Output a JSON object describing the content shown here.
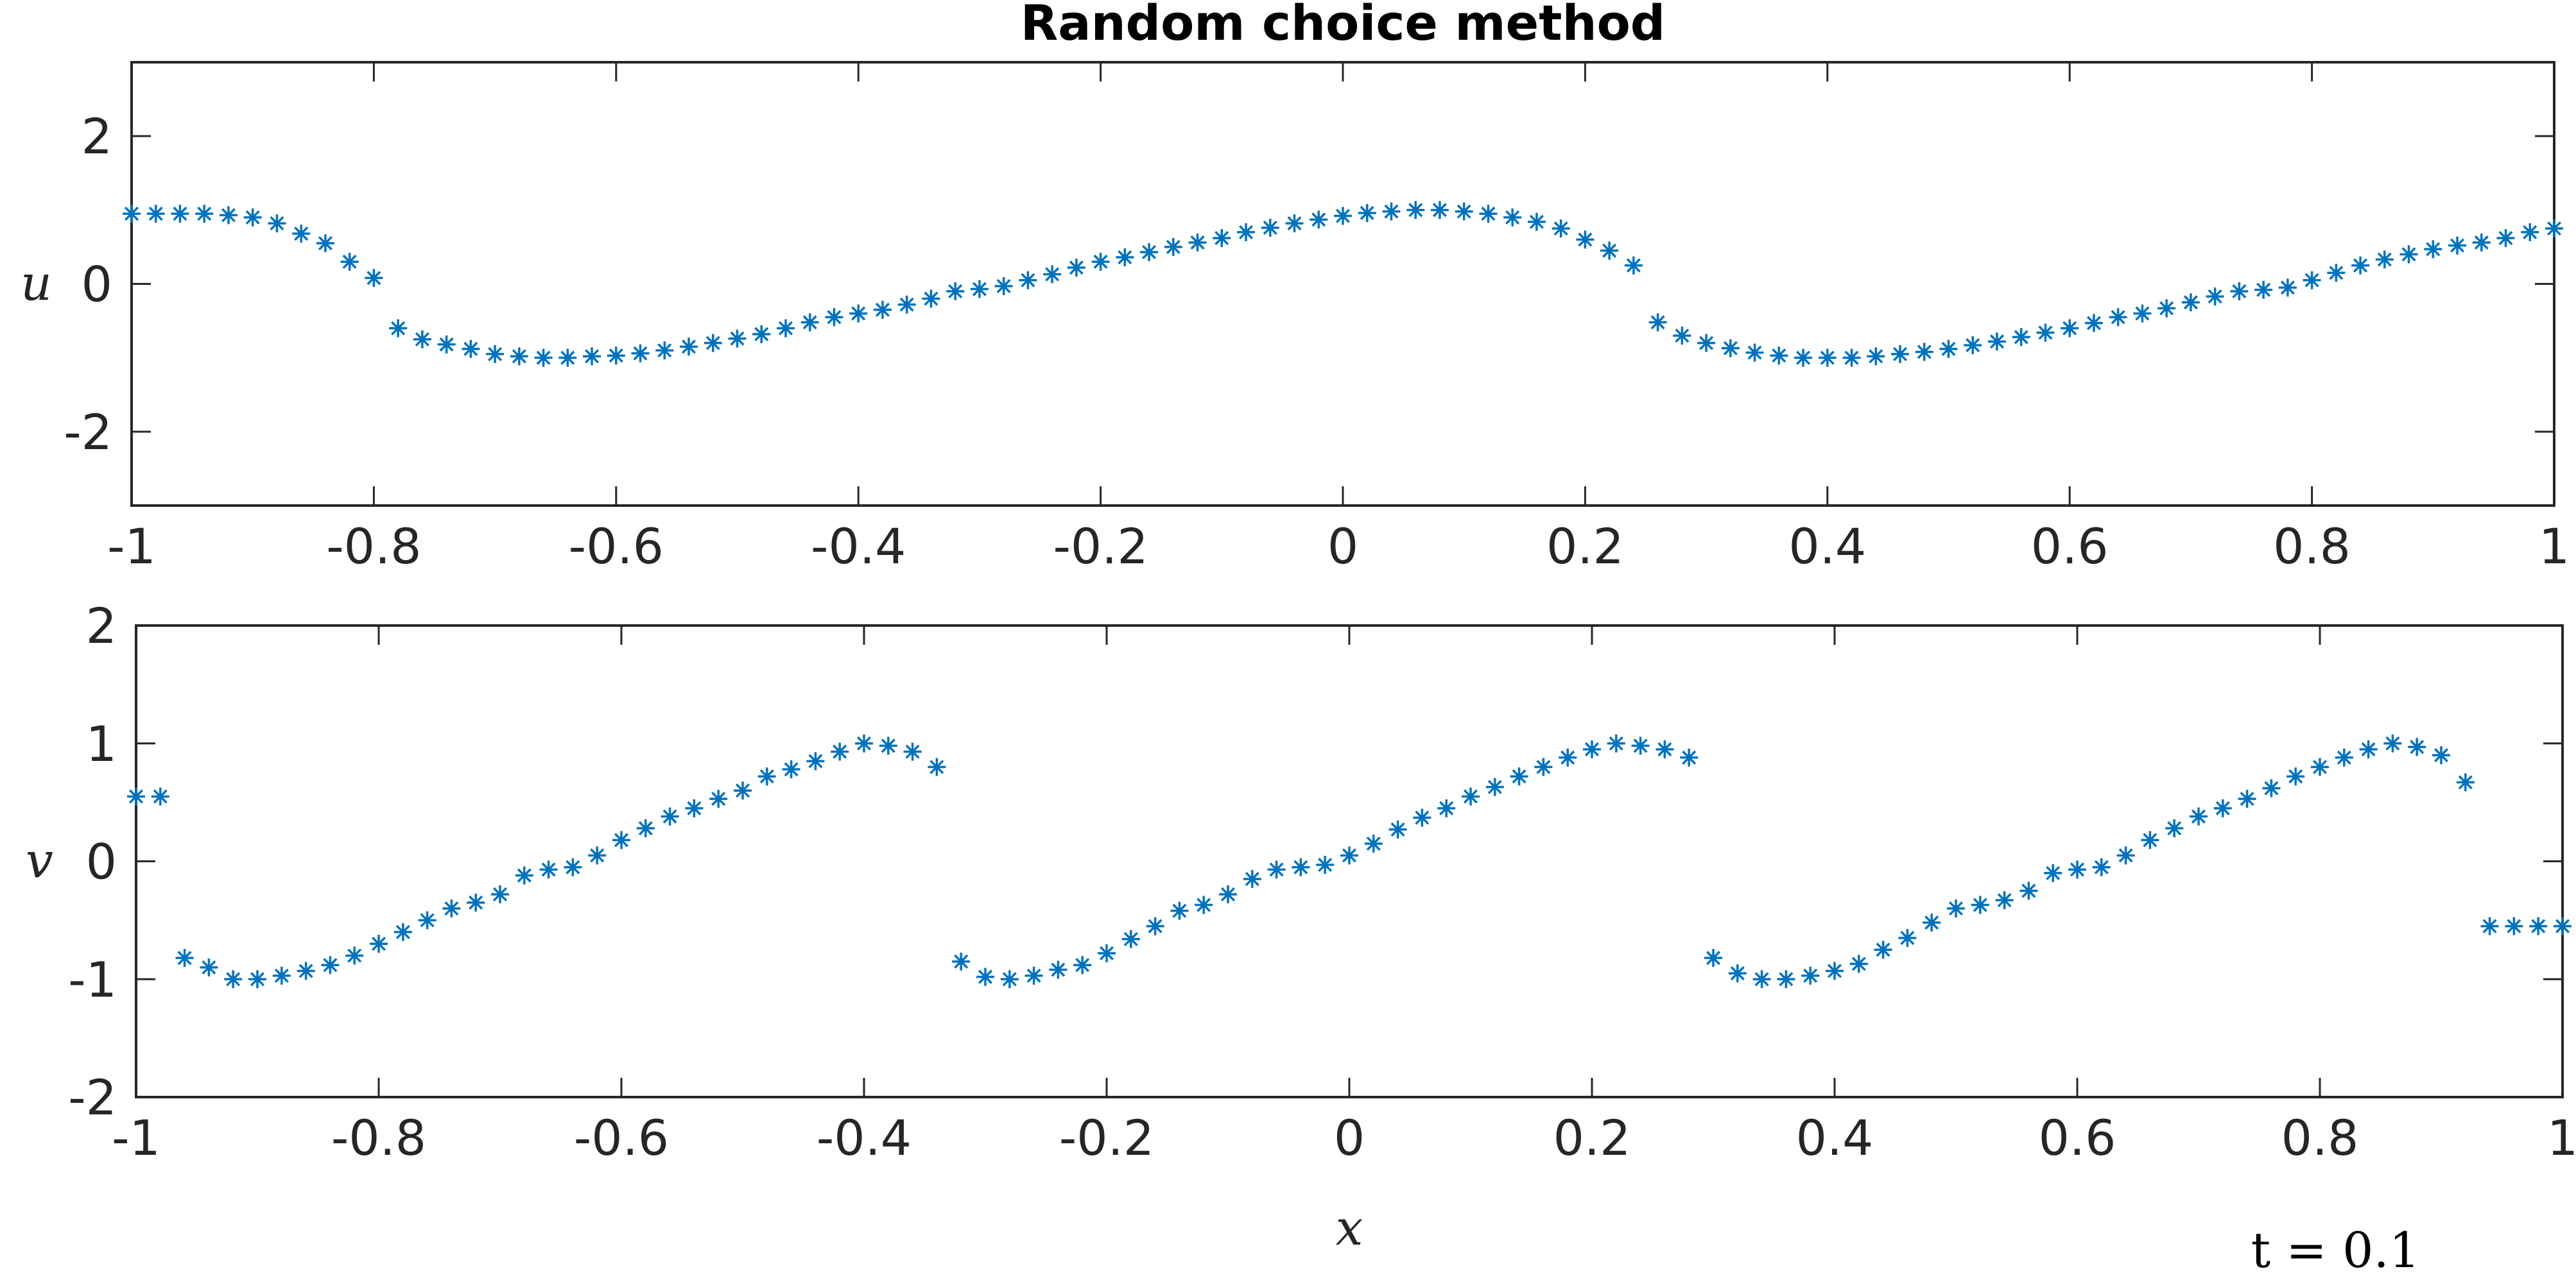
{
  "chart_data": [
    {
      "type": "scatter",
      "title": "Random choice method",
      "ylabel": "u",
      "x": [
        -1,
        -0.98,
        -0.96,
        -0.94,
        -0.92,
        -0.9,
        -0.88,
        -0.86,
        -0.84,
        -0.82,
        -0.8,
        -0.78,
        -0.76,
        -0.74,
        -0.72,
        -0.7,
        -0.68,
        -0.66,
        -0.64,
        -0.62,
        -0.6,
        -0.58,
        -0.56,
        -0.54,
        -0.52,
        -0.5,
        -0.48,
        -0.46,
        -0.44,
        -0.42,
        -0.4,
        -0.38,
        -0.36,
        -0.34,
        -0.32,
        -0.3,
        -0.28,
        -0.26,
        -0.24,
        -0.22,
        -0.2,
        -0.18,
        -0.16,
        -0.14,
        -0.12,
        -0.1,
        -0.08,
        -0.06,
        -0.04,
        -0.02,
        0,
        0.02,
        0.04,
        0.06,
        0.08,
        0.1,
        0.12,
        0.14,
        0.16,
        0.18,
        0.2,
        0.22,
        0.24,
        0.26,
        0.28,
        0.3,
        0.32,
        0.34,
        0.36,
        0.38,
        0.4,
        0.42,
        0.44,
        0.46,
        0.48,
        0.5,
        0.52,
        0.54,
        0.56,
        0.58,
        0.6,
        0.62,
        0.64,
        0.66,
        0.68,
        0.7,
        0.72,
        0.74,
        0.76,
        0.78,
        0.8,
        0.82,
        0.84,
        0.86,
        0.88,
        0.9,
        0.92,
        0.94,
        0.96,
        0.98,
        1
      ],
      "series": [
        {
          "color": "#0072bd",
          "values": [
            0.95,
            0.95,
            0.95,
            0.95,
            0.93,
            0.9,
            0.82,
            0.68,
            0.55,
            0.3,
            0.08,
            -0.6,
            -0.75,
            -0.82,
            -0.88,
            -0.95,
            -0.98,
            -1,
            -1,
            -0.98,
            -0.97,
            -0.94,
            -0.9,
            -0.85,
            -0.8,
            -0.74,
            -0.68,
            -0.6,
            -0.52,
            -0.45,
            -0.4,
            -0.35,
            -0.28,
            -0.2,
            -0.1,
            -0.07,
            -0.03,
            0.05,
            0.13,
            0.22,
            0.3,
            0.36,
            0.43,
            0.5,
            0.56,
            0.62,
            0.7,
            0.76,
            0.82,
            0.87,
            0.92,
            0.96,
            0.98,
            1,
            1,
            0.98,
            0.95,
            0.9,
            0.84,
            0.75,
            0.6,
            0.45,
            0.25,
            -0.52,
            -0.7,
            -0.8,
            -0.87,
            -0.93,
            -0.97,
            -1,
            -1,
            -1,
            -0.98,
            -0.95,
            -0.92,
            -0.88,
            -0.83,
            -0.78,
            -0.72,
            -0.66,
            -0.6,
            -0.53,
            -0.45,
            -0.4,
            -0.33,
            -0.25,
            -0.17,
            -0.1,
            -0.08,
            -0.05,
            0.05,
            0.15,
            0.25,
            0.33,
            0.4,
            0.47,
            0.52,
            0.56,
            0.62,
            0.7,
            0.75
          ]
        }
      ],
      "xlim": [
        -1,
        1
      ],
      "xticks": [
        -1,
        -0.8,
        -0.6,
        -0.4,
        -0.2,
        0,
        0.2,
        0.4,
        0.6,
        0.8,
        1
      ],
      "ylim": [
        -3,
        3
      ],
      "yticks": [
        -2,
        0,
        2
      ]
    },
    {
      "type": "scatter",
      "ylabel": "v",
      "xlabel": "x",
      "annotation": "t = 0.1",
      "x": [
        -1,
        -0.98,
        -0.96,
        -0.94,
        -0.92,
        -0.9,
        -0.88,
        -0.86,
        -0.84,
        -0.82,
        -0.8,
        -0.78,
        -0.76,
        -0.74,
        -0.72,
        -0.7,
        -0.68,
        -0.66,
        -0.64,
        -0.62,
        -0.6,
        -0.58,
        -0.56,
        -0.54,
        -0.52,
        -0.5,
        -0.48,
        -0.46,
        -0.44,
        -0.42,
        -0.4,
        -0.38,
        -0.36,
        -0.34,
        -0.32,
        -0.3,
        -0.28,
        -0.26,
        -0.24,
        -0.22,
        -0.2,
        -0.18,
        -0.16,
        -0.14,
        -0.12,
        -0.1,
        -0.08,
        -0.06,
        -0.04,
        -0.02,
        0,
        0.02,
        0.04,
        0.06,
        0.08,
        0.1,
        0.12,
        0.14,
        0.16,
        0.18,
        0.2,
        0.22,
        0.24,
        0.26,
        0.28,
        0.3,
        0.32,
        0.34,
        0.36,
        0.38,
        0.4,
        0.42,
        0.44,
        0.46,
        0.48,
        0.5,
        0.52,
        0.54,
        0.56,
        0.58,
        0.6,
        0.62,
        0.64,
        0.66,
        0.68,
        0.7,
        0.72,
        0.74,
        0.76,
        0.78,
        0.8,
        0.82,
        0.84,
        0.86,
        0.88,
        0.9,
        0.92,
        0.94,
        0.96,
        0.98,
        1
      ],
      "series": [
        {
          "color": "#0072bd",
          "values": [
            0.55,
            0.55,
            -0.82,
            -0.9,
            -1,
            -1,
            -0.97,
            -0.93,
            -0.88,
            -0.8,
            -0.7,
            -0.6,
            -0.5,
            -0.4,
            -0.35,
            -0.28,
            -0.12,
            -0.07,
            -0.05,
            0.05,
            0.18,
            0.28,
            0.38,
            0.45,
            0.53,
            0.6,
            0.72,
            0.78,
            0.85,
            0.93,
            1,
            0.98,
            0.93,
            0.8,
            -0.85,
            -0.98,
            -1,
            -0.97,
            -0.92,
            -0.88,
            -0.78,
            -0.66,
            -0.55,
            -0.42,
            -0.37,
            -0.28,
            -0.15,
            -0.07,
            -0.05,
            -0.03,
            0.05,
            0.15,
            0.27,
            0.37,
            0.45,
            0.55,
            0.63,
            0.72,
            0.8,
            0.88,
            0.95,
            1,
            0.98,
            0.95,
            0.88,
            -0.82,
            -0.95,
            -1,
            -1,
            -0.97,
            -0.93,
            -0.87,
            -0.75,
            -0.65,
            -0.52,
            -0.4,
            -0.37,
            -0.33,
            -0.25,
            -0.1,
            -0.07,
            -0.05,
            0.05,
            0.18,
            0.28,
            0.38,
            0.45,
            0.53,
            0.62,
            0.72,
            0.8,
            0.88,
            0.95,
            1,
            0.97,
            0.9,
            0.67,
            -0.55,
            -0.55,
            -0.55,
            -0.55
          ]
        }
      ],
      "xlim": [
        -1,
        1
      ],
      "xticks": [
        -1,
        -0.8,
        -0.6,
        -0.4,
        -0.2,
        0,
        0.2,
        0.4,
        0.6,
        0.8,
        1
      ],
      "ylim": [
        -2,
        2
      ],
      "yticks": [
        -2,
        -1,
        0,
        1,
        2
      ]
    }
  ]
}
